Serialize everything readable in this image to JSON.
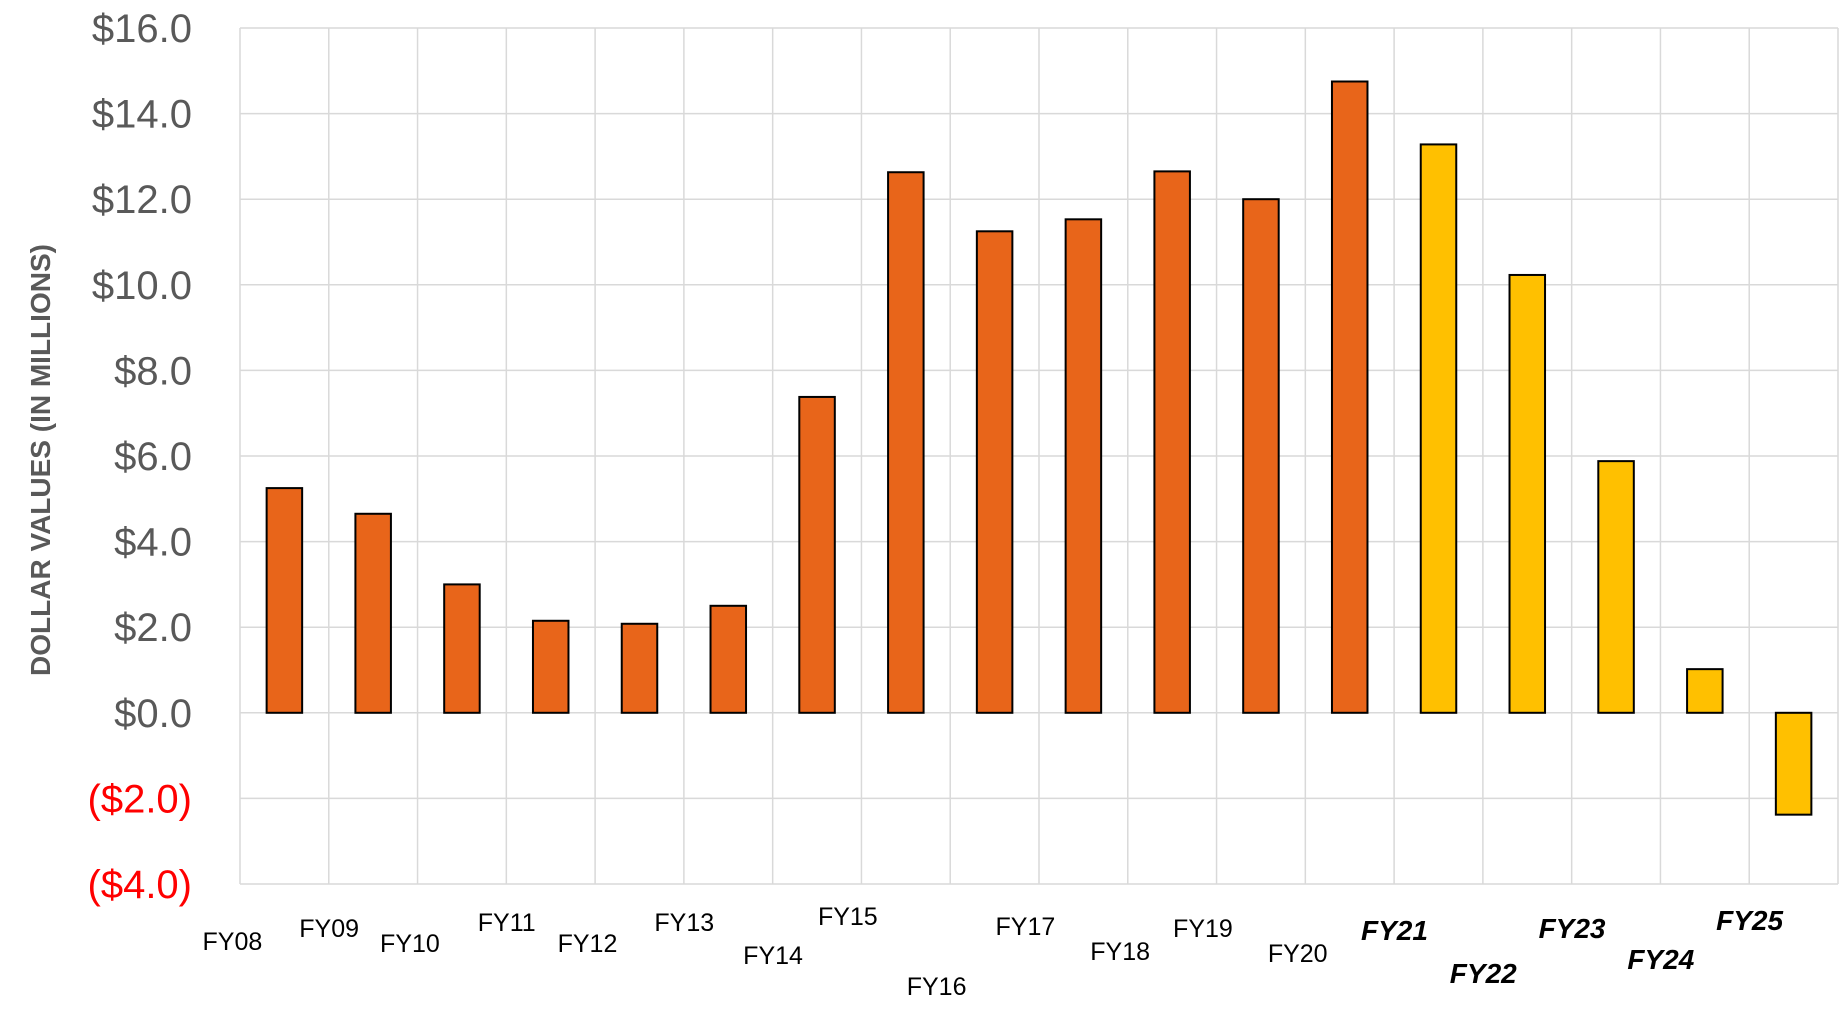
{
  "chart_data": {
    "type": "bar",
    "title": "",
    "ylabel": "DOLLAR VALUES (IN MILLIONS)",
    "xlabel": "",
    "ylim": [
      -4,
      16
    ],
    "yticks": [
      16,
      14,
      12,
      10,
      8,
      6,
      4,
      2,
      0,
      -2,
      -4
    ],
    "ytick_labels": [
      "$16.0",
      "$14.0",
      "$12.0",
      "$10.0",
      "$8.0",
      "$6.0",
      "$4.0",
      "$2.0",
      "$0.0",
      "($2.0)",
      "($4.0)"
    ],
    "grid": true,
    "categories": [
      "FY08",
      "FY09",
      "FY10",
      "FY11",
      "FY12",
      "FY13",
      "FY14",
      "FY15",
      "FY16",
      "FY17",
      "FY18",
      "FY19",
      "FY20",
      "FY21",
      "FY22",
      "FY23",
      "FY24",
      "FY25"
    ],
    "values": [
      5.25,
      4.65,
      3.0,
      2.15,
      2.08,
      2.5,
      7.38,
      12.63,
      11.25,
      11.53,
      12.65,
      12.0,
      14.75,
      13.28,
      10.23,
      5.88,
      1.02,
      -2.38
    ],
    "projected": [
      false,
      false,
      false,
      false,
      false,
      false,
      false,
      false,
      false,
      false,
      false,
      false,
      false,
      true,
      true,
      true,
      true,
      true
    ],
    "colors": {
      "actual_bar": "#e8651a",
      "projected_bar": "#ffc000",
      "actual_label": "#000000",
      "projected_label": "#00b050",
      "positive_tick": "#595959",
      "negative_tick": "#ff0000"
    }
  }
}
